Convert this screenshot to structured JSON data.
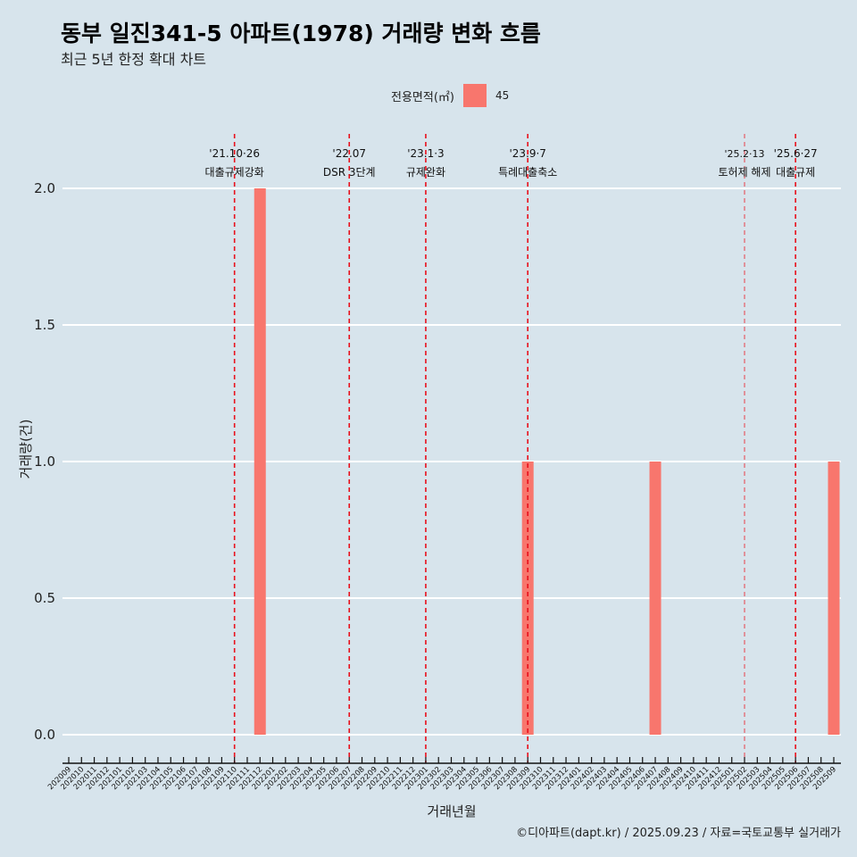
{
  "title": "동부 일진341-5 아파트(1978) 거래량 변화 흐름",
  "subtitle": "최근 5년 한정 확대 차트",
  "legend": {
    "title": "전용면적(㎡)",
    "items": [
      {
        "label": "45",
        "color": "#f8766d"
      }
    ]
  },
  "caption": "©디아파트(dapt.kr) / 2025.09.23 / 자료=국토교통부 실거래가",
  "chart_data": {
    "type": "bar",
    "xlabel": "거래년월",
    "ylabel": "거래량(건)",
    "ylim": [
      0,
      2
    ],
    "yticks": [
      "0.0",
      "0.5",
      "1.0",
      "1.5",
      "2.0"
    ],
    "grid": true,
    "legend_position": "top",
    "categories": [
      "202009",
      "202010",
      "202011",
      "202012",
      "202101",
      "202102",
      "202103",
      "202104",
      "202105",
      "202106",
      "202107",
      "202108",
      "202109",
      "202110",
      "202111",
      "202112",
      "202201",
      "202202",
      "202203",
      "202204",
      "202205",
      "202206",
      "202207",
      "202208",
      "202209",
      "202210",
      "202211",
      "202212",
      "202301",
      "202302",
      "202303",
      "202304",
      "202305",
      "202306",
      "202307",
      "202308",
      "202309",
      "202310",
      "202311",
      "202312",
      "202401",
      "202402",
      "202403",
      "202404",
      "202405",
      "202406",
      "202407",
      "202408",
      "202409",
      "202410",
      "202411",
      "202412",
      "202501",
      "202502",
      "202503",
      "202504",
      "202505",
      "202506",
      "202507",
      "202508",
      "202509"
    ],
    "series": [
      {
        "name": "45",
        "color": "#f8766d",
        "points": [
          {
            "x": "202112",
            "y": 2
          },
          {
            "x": "202309",
            "y": 1
          },
          {
            "x": "202407",
            "y": 1
          },
          {
            "x": "202509",
            "y": 1
          }
        ]
      }
    ],
    "annotations": [
      {
        "x": "202110",
        "date": "'21.10·26",
        "label": "대출규제강화",
        "thin": false
      },
      {
        "x": "202207",
        "date": "'22.07",
        "label": "DSR 3단계",
        "thin": false
      },
      {
        "x": "202301",
        "date": "'23.1·3",
        "label": "규제완화",
        "thin": false
      },
      {
        "x": "202309",
        "date": "'23.9·7",
        "label": "특례대출축소",
        "thin": false
      },
      {
        "x": "202502",
        "date": "'25.2·13",
        "label": "토허제 해제",
        "thin": true
      },
      {
        "x": "202506",
        "date": "'25.6·27",
        "label": "대출규제",
        "thin": false
      }
    ]
  }
}
